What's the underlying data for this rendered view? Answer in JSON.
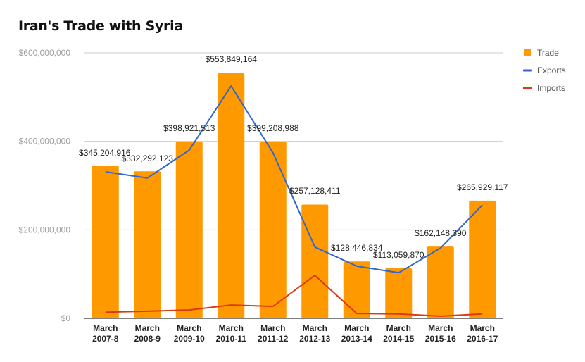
{
  "chart_data": {
    "type": "bar",
    "title": "Iran's Trade with Syria",
    "xlabel": "",
    "ylabel": "",
    "ylim": [
      0,
      600000000
    ],
    "yticks": [
      0,
      200000000,
      400000000,
      600000000
    ],
    "ytick_labels": [
      "$0",
      "$200,000,000",
      "$400,000,000",
      "$600,000,000"
    ],
    "grid": true,
    "legend_position": "right",
    "categories": [
      [
        "March",
        "2007-8"
      ],
      [
        "March",
        "2008-9"
      ],
      [
        "March",
        "2009-10"
      ],
      [
        "March",
        "2010-11"
      ],
      [
        "March",
        "2011-12"
      ],
      [
        "March",
        "2012-13"
      ],
      [
        "March",
        "2013-14"
      ],
      [
        "March",
        "2014-15"
      ],
      [
        "March",
        "2015-16"
      ],
      [
        "March",
        "2016-17"
      ]
    ],
    "series": [
      {
        "name": "Trade",
        "kind": "bar",
        "color": "#ff9900",
        "values": [
          345204916,
          332292123,
          398921513,
          553849164,
          399208988,
          257128411,
          128446834,
          113059870,
          162148390,
          265929117
        ],
        "labels": [
          "$345,204,916",
          "$332,292,123",
          "$398,921,513",
          "$553,849,164",
          "$399,208,988",
          "$257,128,411",
          "$128,446,834",
          "$113,059,870",
          "$162,148,390",
          "$265,929,117"
        ]
      },
      {
        "name": "Exports",
        "kind": "line",
        "color": "#3366cc",
        "values": [
          331000000,
          317000000,
          380000000,
          525000000,
          374000000,
          161000000,
          118000000,
          103000000,
          159000000,
          256000000
        ]
      },
      {
        "name": "Imports",
        "kind": "line",
        "color": "#dc3912",
        "values": [
          14000000,
          16000000,
          19000000,
          30000000,
          27000000,
          97000000,
          11000000,
          10000000,
          5000000,
          10000000
        ]
      }
    ]
  }
}
